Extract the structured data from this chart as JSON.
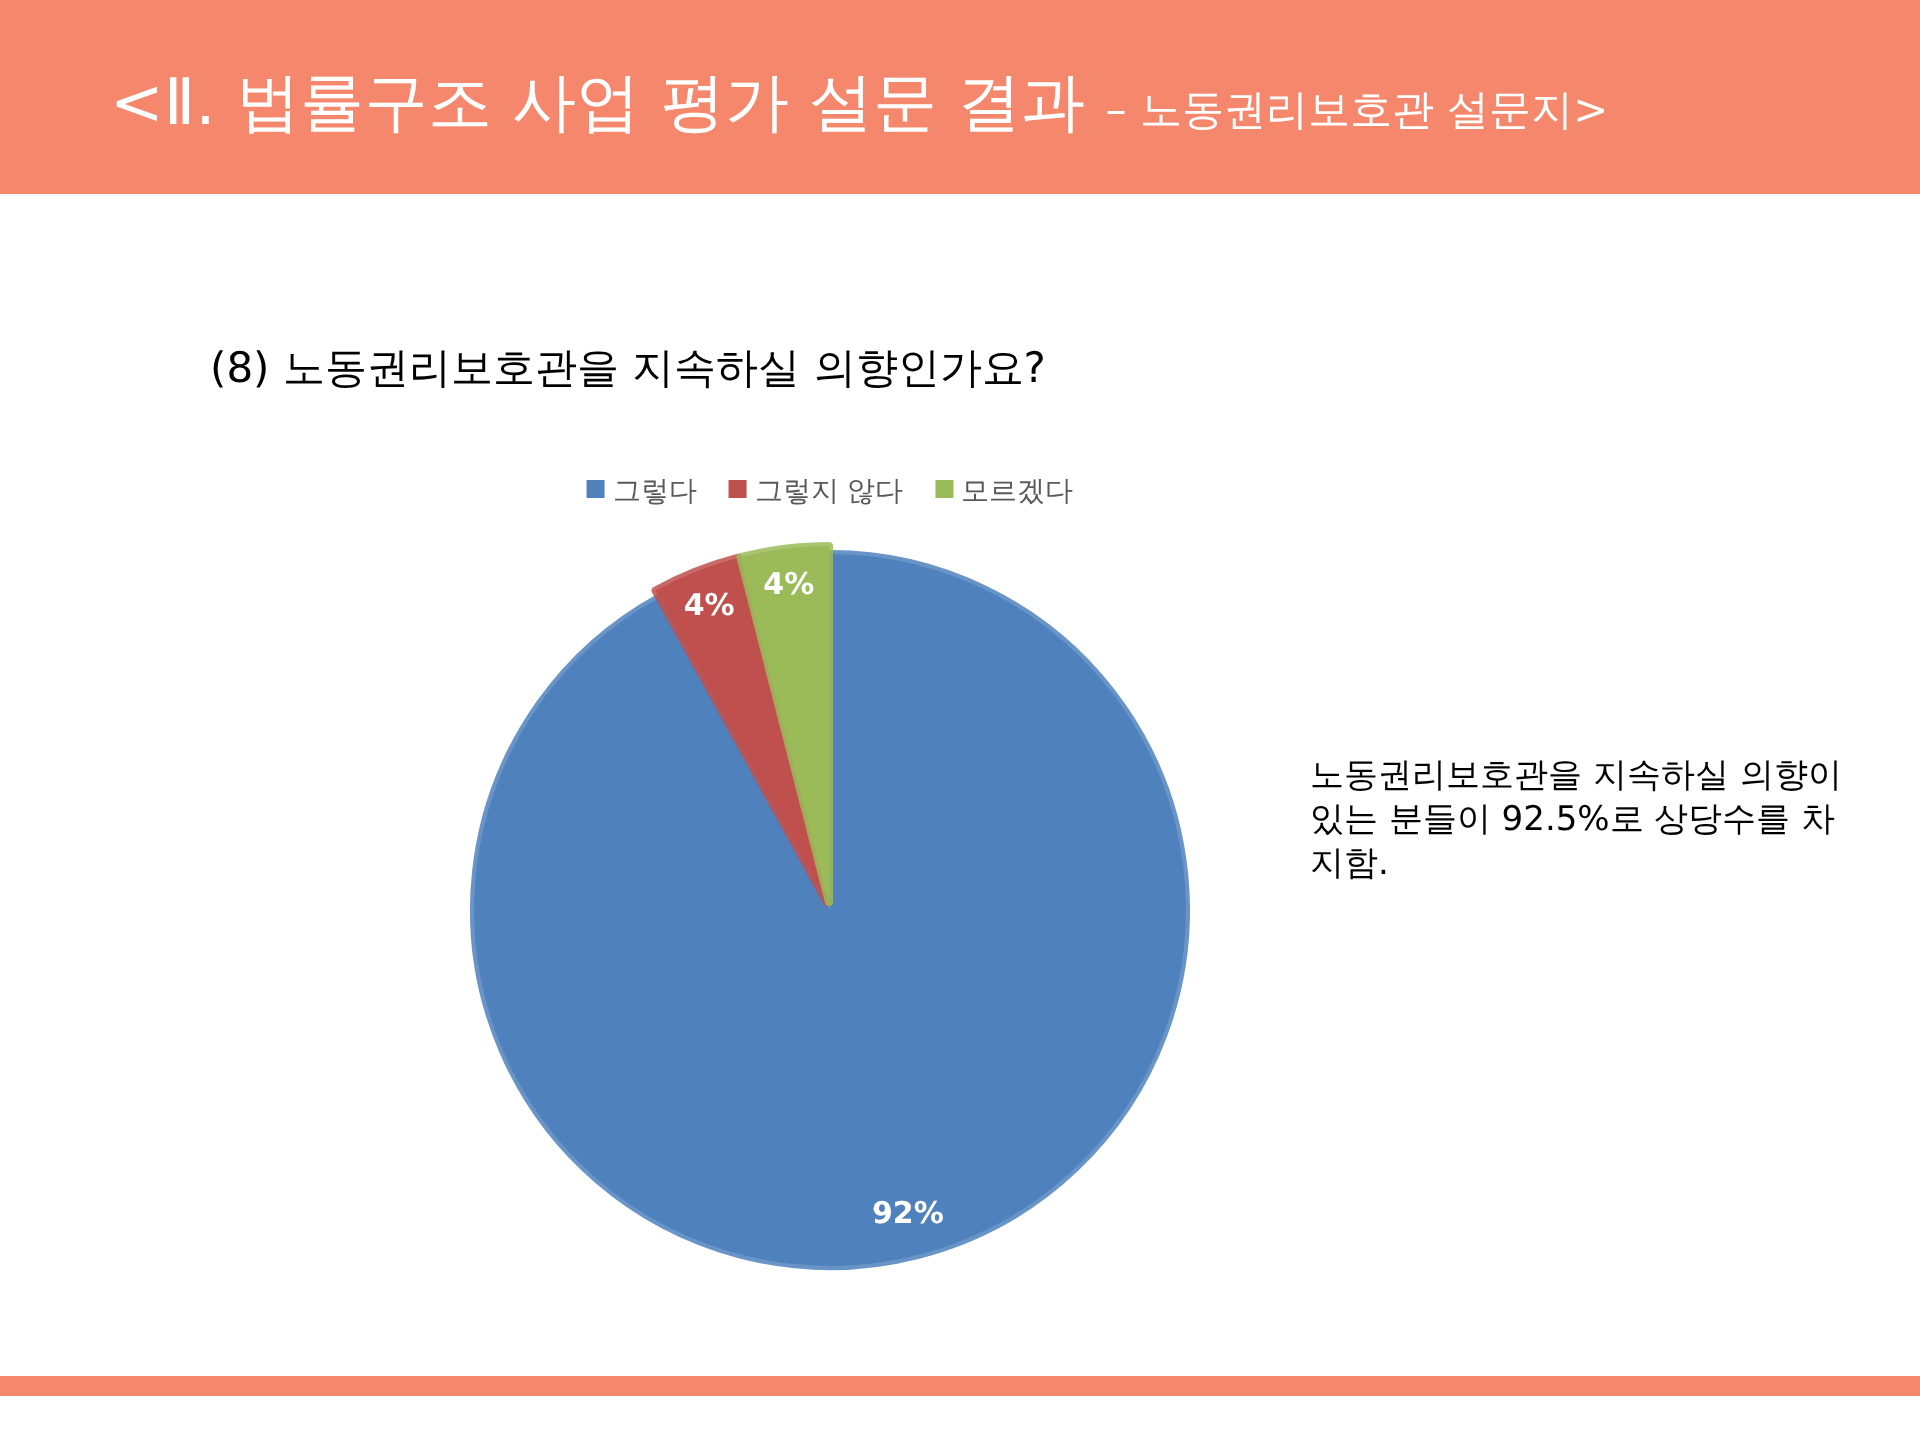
{
  "chart_data": {
    "type": "pie",
    "title": "<Ⅱ. 법률구조 사업 평가 설문 결과",
    "subtitle": "– 노동권리보호관 설문지>",
    "annotations": [
      "(8) 노동권리보호관을 지속하실 의향인가요?",
      "노동권리보호관을 지속하실 의향이 있는 분들이 92.5%로 상당수를 차지함."
    ],
    "categories": [
      "그렇다",
      "그렇지 않다",
      "모르겠다"
    ],
    "values": [
      92,
      4,
      4
    ],
    "colors": [
      "#4f81bd",
      "#c0504d",
      "#9bbb59"
    ],
    "value_labels": [
      "92%",
      "4%",
      "4%"
    ],
    "legend": "top"
  }
}
